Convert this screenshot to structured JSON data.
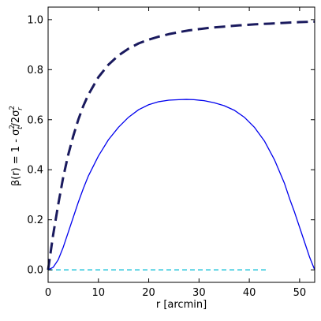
{
  "chart_data": {
    "type": "line",
    "xlabel": "r [arcmin]",
    "ylabel": {
      "pre": "β(r) = 1 - σ",
      "sub1": "t",
      "sup1": "2",
      "mid": "/2σ",
      "sub2": "r",
      "sup2": "2"
    },
    "xlim": [
      0,
      53
    ],
    "ylim": [
      -0.05,
      1.05
    ],
    "x_ticks": [
      0,
      10,
      20,
      30,
      40,
      50
    ],
    "x_tick_labels": [
      "0",
      "10",
      "20",
      "30",
      "40",
      "50"
    ],
    "y_ticks": [
      0.0,
      0.2,
      0.4,
      0.6,
      0.8,
      1.0
    ],
    "y_tick_labels": [
      "0.0",
      "0.2",
      "0.4",
      "0.6",
      "0.8",
      "1.0"
    ],
    "grid": false,
    "series": [
      {
        "style": "dashed-thick",
        "color": "#1a1a5e",
        "x": [
          0,
          1,
          2,
          3,
          4,
          5,
          6,
          7,
          8,
          10,
          12,
          14,
          16,
          18,
          20,
          22,
          24,
          26,
          28,
          30,
          32,
          35,
          38,
          41,
          44,
          47,
          50,
          53
        ],
        "y": [
          0.0,
          0.14,
          0.26,
          0.37,
          0.46,
          0.535,
          0.6,
          0.655,
          0.7,
          0.77,
          0.82,
          0.857,
          0.884,
          0.905,
          0.92,
          0.932,
          0.942,
          0.95,
          0.957,
          0.962,
          0.967,
          0.972,
          0.977,
          0.981,
          0.984,
          0.987,
          0.99,
          0.992
        ]
      },
      {
        "style": "solid",
        "color": "#0000ee",
        "x": [
          0,
          1,
          2,
          3,
          4,
          5,
          6,
          7,
          8,
          10,
          12,
          14,
          16,
          18,
          20,
          22,
          24,
          26,
          27.5,
          29,
          31,
          33,
          35,
          37,
          39,
          41,
          43,
          45,
          47,
          48,
          49,
          50,
          51,
          52,
          53
        ],
        "y": [
          0.0,
          0.01,
          0.04,
          0.09,
          0.15,
          0.21,
          0.27,
          0.325,
          0.375,
          0.455,
          0.52,
          0.57,
          0.61,
          0.64,
          0.66,
          0.672,
          0.678,
          0.68,
          0.681,
          0.68,
          0.676,
          0.668,
          0.656,
          0.638,
          0.61,
          0.57,
          0.515,
          0.44,
          0.345,
          0.285,
          0.23,
          0.17,
          0.11,
          0.05,
          0.0
        ]
      },
      {
        "style": "dashed-thin",
        "color": "#00bcd4",
        "x": [
          0,
          43.5
        ],
        "y": [
          0.0,
          0.0
        ]
      }
    ]
  }
}
